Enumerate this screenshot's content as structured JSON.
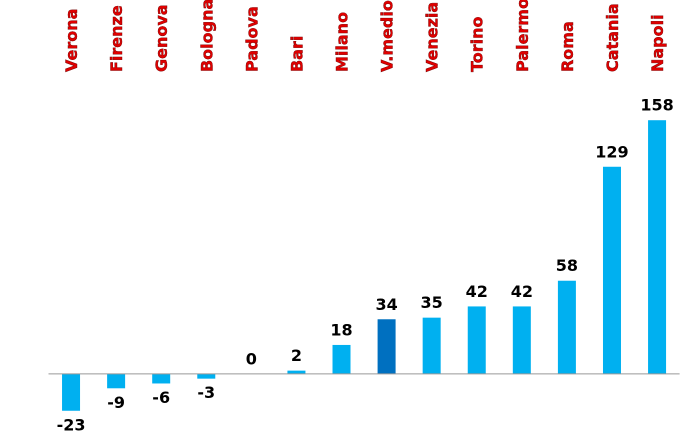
{
  "chart_data": {
    "type": "bar",
    "categories": [
      "Verona",
      "Firenze",
      "Genova",
      "Bologna",
      "Padova",
      "Bari",
      "Milano",
      "V.medio",
      "Venezia",
      "Torino",
      "Palermo",
      "Roma",
      "Catania",
      "Napoli"
    ],
    "values": [
      -23,
      -9,
      -6,
      -3,
      0,
      2,
      18,
      34,
      35,
      42,
      42,
      58,
      129,
      158
    ],
    "colors": [
      "#00b0f0",
      "#00b0f0",
      "#00b0f0",
      "#00b0f0",
      "#00b0f0",
      "#00b0f0",
      "#00b0f0",
      "#0070c0",
      "#00b0f0",
      "#00b0f0",
      "#00b0f0",
      "#00b0f0",
      "#00b0f0",
      "#00b0f0"
    ],
    "ylim": [
      -30,
      160
    ]
  }
}
